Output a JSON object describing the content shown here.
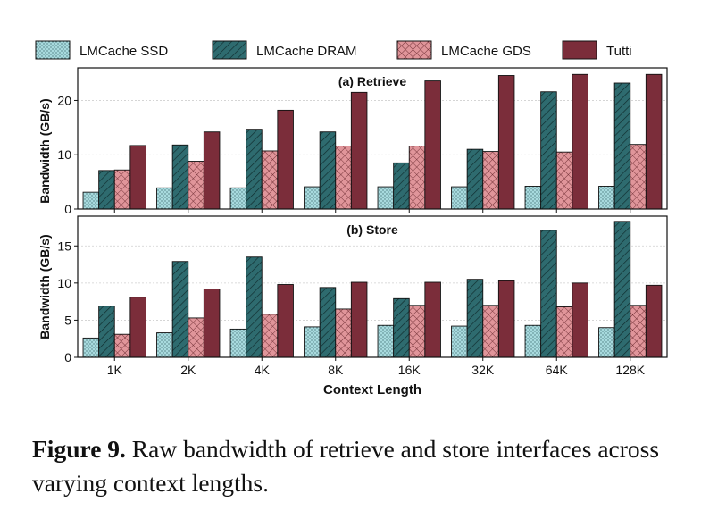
{
  "caption": {
    "label": "Figure 9.",
    "text": "Raw bandwidth of retrieve and store interfaces across varying context lengths."
  },
  "legend": [
    {
      "name": "LMCache SSD",
      "color": "#a8dade",
      "pattern": "dots"
    },
    {
      "name": "LMCache DRAM",
      "color": "#2e6b6f",
      "pattern": "diag"
    },
    {
      "name": "LMCache GDS",
      "color": "#e0959a",
      "pattern": "cross"
    },
    {
      "name": "Tutti",
      "color": "#7b2d3a",
      "pattern": "none"
    }
  ],
  "chart_data": [
    {
      "type": "bar",
      "title": "(a) Retrieve",
      "xlabel": "",
      "ylabel": "Bandwidth (GB/s)",
      "ylim": [
        0,
        26
      ],
      "yticks": [
        0,
        10,
        20
      ],
      "grid": true,
      "categories": [
        "1K",
        "2K",
        "4K",
        "8K",
        "16K",
        "32K",
        "64K",
        "128K"
      ],
      "series": [
        {
          "name": "LMCache SSD",
          "values": [
            3.1,
            3.9,
            3.9,
            4.1,
            4.1,
            4.1,
            4.2,
            4.2
          ]
        },
        {
          "name": "LMCache DRAM",
          "values": [
            7.1,
            11.8,
            14.7,
            14.2,
            8.5,
            11.0,
            21.6,
            23.2
          ]
        },
        {
          "name": "LMCache GDS",
          "values": [
            7.2,
            8.8,
            10.7,
            11.6,
            11.6,
            10.6,
            10.5,
            11.9
          ]
        },
        {
          "name": "Tutti",
          "values": [
            11.7,
            14.2,
            18.2,
            21.5,
            23.6,
            24.6,
            24.8,
            24.8
          ]
        }
      ]
    },
    {
      "type": "bar",
      "title": "(b) Store",
      "xlabel": "Context Length",
      "ylabel": "Bandwidth (GB/s)",
      "ylim": [
        0,
        19
      ],
      "yticks": [
        0,
        5,
        10,
        15
      ],
      "grid": true,
      "categories": [
        "1K",
        "2K",
        "4K",
        "8K",
        "16K",
        "32K",
        "64K",
        "128K"
      ],
      "series": [
        {
          "name": "LMCache SSD",
          "values": [
            2.6,
            3.3,
            3.8,
            4.1,
            4.3,
            4.2,
            4.3,
            4.0
          ]
        },
        {
          "name": "LMCache DRAM",
          "values": [
            6.9,
            12.9,
            13.5,
            9.4,
            7.9,
            10.5,
            17.1,
            18.3
          ]
        },
        {
          "name": "LMCache GDS",
          "values": [
            3.1,
            5.3,
            5.8,
            6.5,
            7.0,
            7.0,
            6.8,
            7.0
          ]
        },
        {
          "name": "Tutti",
          "values": [
            8.1,
            9.2,
            9.8,
            10.1,
            10.1,
            10.3,
            10.0,
            9.7
          ]
        }
      ]
    }
  ]
}
